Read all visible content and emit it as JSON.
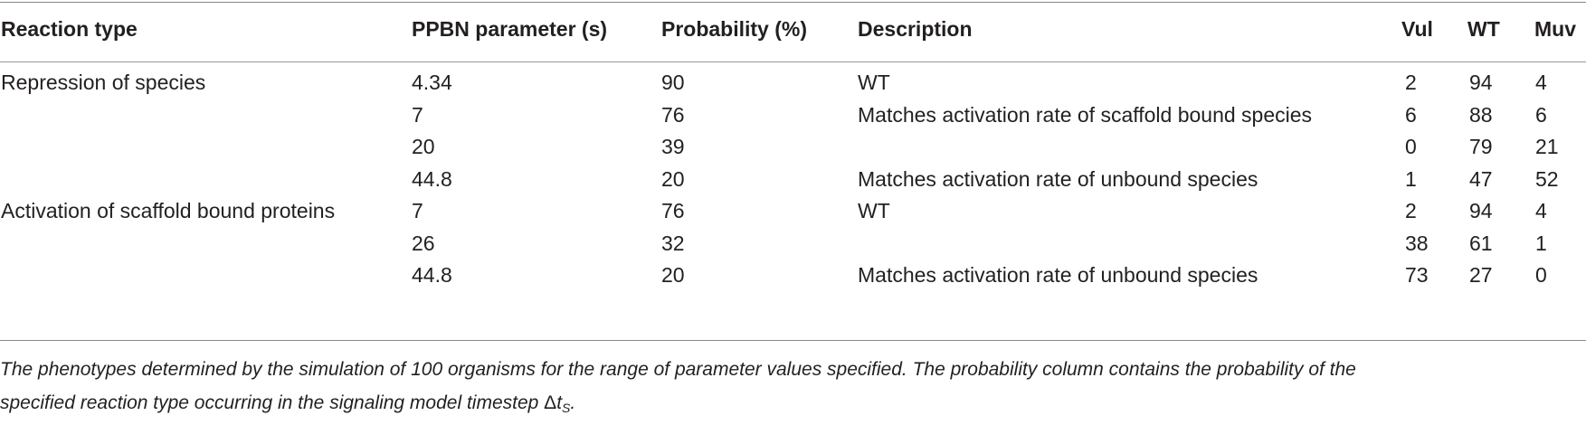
{
  "table": {
    "headers": {
      "reaction_type": "Reaction type",
      "ppbn": "PPBN parameter (s)",
      "probability": "Probability (%)",
      "description": "Description",
      "vul": "Vul",
      "wt": "WT",
      "muv": "Muv"
    },
    "rows": [
      {
        "reaction_type": "Repression of species",
        "ppbn": "4.34",
        "probability": "90",
        "description": "WT",
        "vul": "2",
        "wt": "94",
        "muv": "4"
      },
      {
        "reaction_type": "",
        "ppbn": "7",
        "probability": "76",
        "description": "Matches activation rate of scaffold bound species",
        "vul": "6",
        "wt": "88",
        "muv": "6"
      },
      {
        "reaction_type": "",
        "ppbn": "20",
        "probability": "39",
        "description": "",
        "vul": "0",
        "wt": "79",
        "muv": "21"
      },
      {
        "reaction_type": "",
        "ppbn": "44.8",
        "probability": "20",
        "description": "Matches activation rate of unbound species",
        "vul": "1",
        "wt": "47",
        "muv": "52"
      },
      {
        "reaction_type": "Activation of scaffold bound proteins",
        "ppbn": "7",
        "probability": "76",
        "description": "WT",
        "vul": "2",
        "wt": "94",
        "muv": "4"
      },
      {
        "reaction_type": "",
        "ppbn": "26",
        "probability": "32",
        "description": "",
        "vul": "38",
        "wt": "61",
        "muv": "1"
      },
      {
        "reaction_type": "",
        "ppbn": "44.8",
        "probability": "20",
        "description": "Matches activation rate of unbound species",
        "vul": "73",
        "wt": "27",
        "muv": "0"
      }
    ]
  },
  "caption": {
    "line1": "The phenotypes determined by the simulation of 100 organisms for the range of parameter values specified. The probability column contains the probability of the",
    "line2_text": "specified reaction type occurring in the signaling model timestep ",
    "delta": "Δ",
    "t": "t",
    "subscript": "S",
    "period": "."
  }
}
